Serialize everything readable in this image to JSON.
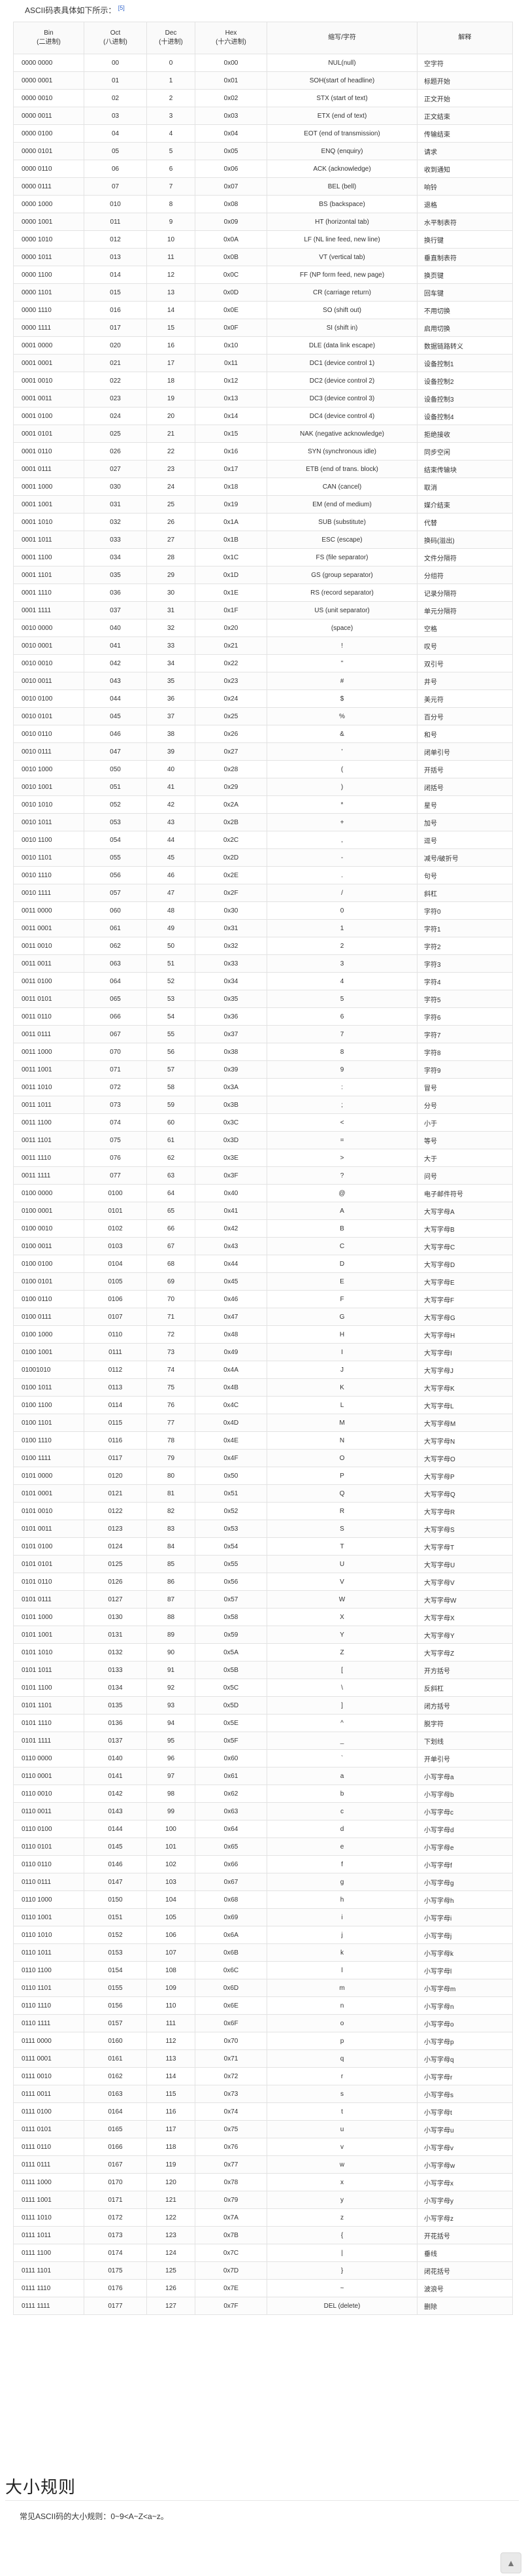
{
  "intro": {
    "text": "ASCII码表具体如下所示：",
    "ref": "[5]"
  },
  "table": {
    "headers": {
      "bin": [
        "Bin",
        "(二进制)"
      ],
      "oct": [
        "Oct",
        "(八进制)"
      ],
      "dec": [
        "Dec",
        "(十进制)"
      ],
      "hex": [
        "Hex",
        "(十六进制)"
      ],
      "abbr": [
        "缩写/字符"
      ],
      "desc": [
        "解释"
      ]
    },
    "rows": [
      [
        "0000 0000",
        "00",
        "0",
        "0x00",
        "NUL(null)",
        "空字符"
      ],
      [
        "0000 0001",
        "01",
        "1",
        "0x01",
        "SOH(start of headline)",
        "标题开始"
      ],
      [
        "0000 0010",
        "02",
        "2",
        "0x02",
        "STX (start of text)",
        "正文开始"
      ],
      [
        "0000 0011",
        "03",
        "3",
        "0x03",
        "ETX (end of text)",
        "正文结束"
      ],
      [
        "0000 0100",
        "04",
        "4",
        "0x04",
        "EOT (end of transmission)",
        "传输结束"
      ],
      [
        "0000 0101",
        "05",
        "5",
        "0x05",
        "ENQ (enquiry)",
        "请求"
      ],
      [
        "0000 0110",
        "06",
        "6",
        "0x06",
        "ACK (acknowledge)",
        "收到通知"
      ],
      [
        "0000 0111",
        "07",
        "7",
        "0x07",
        "BEL (bell)",
        "响铃"
      ],
      [
        "0000 1000",
        "010",
        "8",
        "0x08",
        "BS (backspace)",
        "退格"
      ],
      [
        "0000 1001",
        "011",
        "9",
        "0x09",
        "HT (horizontal tab)",
        "水平制表符"
      ],
      [
        "0000 1010",
        "012",
        "10",
        "0x0A",
        "LF (NL line feed, new line)",
        "换行键"
      ],
      [
        "0000 1011",
        "013",
        "11",
        "0x0B",
        "VT (vertical tab)",
        "垂直制表符"
      ],
      [
        "0000 1100",
        "014",
        "12",
        "0x0C",
        "FF (NP form feed, new page)",
        "换页键"
      ],
      [
        "0000 1101",
        "015",
        "13",
        "0x0D",
        "CR (carriage return)",
        "回车键"
      ],
      [
        "0000 1110",
        "016",
        "14",
        "0x0E",
        "SO (shift out)",
        "不用切换"
      ],
      [
        "0000 1111",
        "017",
        "15",
        "0x0F",
        "SI (shift in)",
        "启用切换"
      ],
      [
        "0001 0000",
        "020",
        "16",
        "0x10",
        "DLE (data link escape)",
        "数据链路转义"
      ],
      [
        "0001 0001",
        "021",
        "17",
        "0x11",
        "DC1 (device control 1)",
        "设备控制1"
      ],
      [
        "0001 0010",
        "022",
        "18",
        "0x12",
        "DC2 (device control 2)",
        "设备控制2"
      ],
      [
        "0001 0011",
        "023",
        "19",
        "0x13",
        "DC3 (device control 3)",
        "设备控制3"
      ],
      [
        "0001 0100",
        "024",
        "20",
        "0x14",
        "DC4 (device control 4)",
        "设备控制4"
      ],
      [
        "0001 0101",
        "025",
        "21",
        "0x15",
        "NAK (negative acknowledge)",
        "拒绝接收"
      ],
      [
        "0001 0110",
        "026",
        "22",
        "0x16",
        "SYN (synchronous idle)",
        "同步空闲"
      ],
      [
        "0001 0111",
        "027",
        "23",
        "0x17",
        "ETB (end of trans. block)",
        "结束传输块"
      ],
      [
        "0001 1000",
        "030",
        "24",
        "0x18",
        "CAN (cancel)",
        "取消"
      ],
      [
        "0001 1001",
        "031",
        "25",
        "0x19",
        "EM (end of medium)",
        "媒介结束"
      ],
      [
        "0001 1010",
        "032",
        "26",
        "0x1A",
        "SUB (substitute)",
        "代替"
      ],
      [
        "0001 1011",
        "033",
        "27",
        "0x1B",
        "ESC (escape)",
        "换码(溢出)"
      ],
      [
        "0001 1100",
        "034",
        "28",
        "0x1C",
        "FS (file separator)",
        "文件分隔符"
      ],
      [
        "0001 1101",
        "035",
        "29",
        "0x1D",
        "GS (group separator)",
        "分组符"
      ],
      [
        "0001 1110",
        "036",
        "30",
        "0x1E",
        "RS (record separator)",
        "记录分隔符"
      ],
      [
        "0001 1111",
        "037",
        "31",
        "0x1F",
        "US (unit separator)",
        "单元分隔符"
      ],
      [
        "0010 0000",
        "040",
        "32",
        "0x20",
        "(space)",
        "空格"
      ],
      [
        "0010 0001",
        "041",
        "33",
        "0x21",
        "!",
        "叹号"
      ],
      [
        "0010 0010",
        "042",
        "34",
        "0x22",
        "\"",
        "双引号"
      ],
      [
        "0010 0011",
        "043",
        "35",
        "0x23",
        "#",
        "井号"
      ],
      [
        "0010 0100",
        "044",
        "36",
        "0x24",
        "$",
        "美元符"
      ],
      [
        "0010 0101",
        "045",
        "37",
        "0x25",
        "%",
        "百分号"
      ],
      [
        "0010 0110",
        "046",
        "38",
        "0x26",
        "&",
        "和号"
      ],
      [
        "0010 0111",
        "047",
        "39",
        "0x27",
        "'",
        "闭单引号"
      ],
      [
        "0010 1000",
        "050",
        "40",
        "0x28",
        "(",
        "开括号"
      ],
      [
        "0010 1001",
        "051",
        "41",
        "0x29",
        ")",
        "闭括号"
      ],
      [
        "0010 1010",
        "052",
        "42",
        "0x2A",
        "*",
        "星号"
      ],
      [
        "0010 1011",
        "053",
        "43",
        "0x2B",
        "+",
        "加号"
      ],
      [
        "0010 1100",
        "054",
        "44",
        "0x2C",
        ",",
        "逗号"
      ],
      [
        "0010 1101",
        "055",
        "45",
        "0x2D",
        "-",
        "减号/破折号"
      ],
      [
        "0010 1110",
        "056",
        "46",
        "0x2E",
        ".",
        "句号"
      ],
      [
        "0010 1111",
        "057",
        "47",
        "0x2F",
        "/",
        "斜杠"
      ],
      [
        "0011 0000",
        "060",
        "48",
        "0x30",
        "0",
        "字符0"
      ],
      [
        "0011 0001",
        "061",
        "49",
        "0x31",
        "1",
        "字符1"
      ],
      [
        "0011 0010",
        "062",
        "50",
        "0x32",
        "2",
        "字符2"
      ],
      [
        "0011 0011",
        "063",
        "51",
        "0x33",
        "3",
        "字符3"
      ],
      [
        "0011 0100",
        "064",
        "52",
        "0x34",
        "4",
        "字符4"
      ],
      [
        "0011 0101",
        "065",
        "53",
        "0x35",
        "5",
        "字符5"
      ],
      [
        "0011 0110",
        "066",
        "54",
        "0x36",
        "6",
        "字符6"
      ],
      [
        "0011 0111",
        "067",
        "55",
        "0x37",
        "7",
        "字符7"
      ],
      [
        "0011 1000",
        "070",
        "56",
        "0x38",
        "8",
        "字符8"
      ],
      [
        "0011 1001",
        "071",
        "57",
        "0x39",
        "9",
        "字符9"
      ],
      [
        "0011 1010",
        "072",
        "58",
        "0x3A",
        ":",
        "冒号"
      ],
      [
        "0011 1011",
        "073",
        "59",
        "0x3B",
        ";",
        "分号"
      ],
      [
        "0011 1100",
        "074",
        "60",
        "0x3C",
        "<",
        "小于"
      ],
      [
        "0011 1101",
        "075",
        "61",
        "0x3D",
        "=",
        "等号"
      ],
      [
        "0011 1110",
        "076",
        "62",
        "0x3E",
        ">",
        "大于"
      ],
      [
        "0011 1111",
        "077",
        "63",
        "0x3F",
        "?",
        "问号"
      ],
      [
        "0100 0000",
        "0100",
        "64",
        "0x40",
        "@",
        "电子邮件符号"
      ],
      [
        "0100 0001",
        "0101",
        "65",
        "0x41",
        "A",
        "大写字母A"
      ],
      [
        "0100 0010",
        "0102",
        "66",
        "0x42",
        "B",
        "大写字母B"
      ],
      [
        "0100 0011",
        "0103",
        "67",
        "0x43",
        "C",
        "大写字母C"
      ],
      [
        "0100 0100",
        "0104",
        "68",
        "0x44",
        "D",
        "大写字母D"
      ],
      [
        "0100 0101",
        "0105",
        "69",
        "0x45",
        "E",
        "大写字母E"
      ],
      [
        "0100 0110",
        "0106",
        "70",
        "0x46",
        "F",
        "大写字母F"
      ],
      [
        "0100 0111",
        "0107",
        "71",
        "0x47",
        "G",
        "大写字母G"
      ],
      [
        "0100 1000",
        "0110",
        "72",
        "0x48",
        "H",
        "大写字母H"
      ],
      [
        "0100 1001",
        "0111",
        "73",
        "0x49",
        "I",
        "大写字母I"
      ],
      [
        "01001010",
        "0112",
        "74",
        "0x4A",
        "J",
        "大写字母J"
      ],
      [
        "0100 1011",
        "0113",
        "75",
        "0x4B",
        "K",
        "大写字母K"
      ],
      [
        "0100 1100",
        "0114",
        "76",
        "0x4C",
        "L",
        "大写字母L"
      ],
      [
        "0100 1101",
        "0115",
        "77",
        "0x4D",
        "M",
        "大写字母M"
      ],
      [
        "0100 1110",
        "0116",
        "78",
        "0x4E",
        "N",
        "大写字母N"
      ],
      [
        "0100 1111",
        "0117",
        "79",
        "0x4F",
        "O",
        "大写字母O"
      ],
      [
        "0101 0000",
        "0120",
        "80",
        "0x50",
        "P",
        "大写字母P"
      ],
      [
        "0101 0001",
        "0121",
        "81",
        "0x51",
        "Q",
        "大写字母Q"
      ],
      [
        "0101 0010",
        "0122",
        "82",
        "0x52",
        "R",
        "大写字母R"
      ],
      [
        "0101 0011",
        "0123",
        "83",
        "0x53",
        "S",
        "大写字母S"
      ],
      [
        "0101 0100",
        "0124",
        "84",
        "0x54",
        "T",
        "大写字母T"
      ],
      [
        "0101 0101",
        "0125",
        "85",
        "0x55",
        "U",
        "大写字母U"
      ],
      [
        "0101 0110",
        "0126",
        "86",
        "0x56",
        "V",
        "大写字母V"
      ],
      [
        "0101 0111",
        "0127",
        "87",
        "0x57",
        "W",
        "大写字母W"
      ],
      [
        "0101 1000",
        "0130",
        "88",
        "0x58",
        "X",
        "大写字母X"
      ],
      [
        "0101 1001",
        "0131",
        "89",
        "0x59",
        "Y",
        "大写字母Y"
      ],
      [
        "0101 1010",
        "0132",
        "90",
        "0x5A",
        "Z",
        "大写字母Z"
      ],
      [
        "0101 1011",
        "0133",
        "91",
        "0x5B",
        "[",
        "开方括号"
      ],
      [
        "0101 1100",
        "0134",
        "92",
        "0x5C",
        "\\",
        "反斜杠"
      ],
      [
        "0101 1101",
        "0135",
        "93",
        "0x5D",
        "]",
        "闭方括号"
      ],
      [
        "0101 1110",
        "0136",
        "94",
        "0x5E",
        "^",
        "脱字符"
      ],
      [
        "0101 1111",
        "0137",
        "95",
        "0x5F",
        "_",
        "下划线"
      ],
      [
        "0110 0000",
        "0140",
        "96",
        "0x60",
        "`",
        "开单引号"
      ],
      [
        "0110 0001",
        "0141",
        "97",
        "0x61",
        "a",
        "小写字母a"
      ],
      [
        "0110 0010",
        "0142",
        "98",
        "0x62",
        "b",
        "小写字母b"
      ],
      [
        "0110 0011",
        "0143",
        "99",
        "0x63",
        "c",
        "小写字母c"
      ],
      [
        "0110 0100",
        "0144",
        "100",
        "0x64",
        "d",
        "小写字母d"
      ],
      [
        "0110 0101",
        "0145",
        "101",
        "0x65",
        "e",
        "小写字母e"
      ],
      [
        "0110 0110",
        "0146",
        "102",
        "0x66",
        "f",
        "小写字母f"
      ],
      [
        "0110 0111",
        "0147",
        "103",
        "0x67",
        "g",
        "小写字母g"
      ],
      [
        "0110 1000",
        "0150",
        "104",
        "0x68",
        "h",
        "小写字母h"
      ],
      [
        "0110 1001",
        "0151",
        "105",
        "0x69",
        "i",
        "小写字母i"
      ],
      [
        "0110 1010",
        "0152",
        "106",
        "0x6A",
        "j",
        "小写字母j"
      ],
      [
        "0110 1011",
        "0153",
        "107",
        "0x6B",
        "k",
        "小写字母k"
      ],
      [
        "0110 1100",
        "0154",
        "108",
        "0x6C",
        "l",
        "小写字母l"
      ],
      [
        "0110 1101",
        "0155",
        "109",
        "0x6D",
        "m",
        "小写字母m"
      ],
      [
        "0110 1110",
        "0156",
        "110",
        "0x6E",
        "n",
        "小写字母n"
      ],
      [
        "0110 1111",
        "0157",
        "111",
        "0x6F",
        "o",
        "小写字母o"
      ],
      [
        "0111 0000",
        "0160",
        "112",
        "0x70",
        "p",
        "小写字母p"
      ],
      [
        "0111 0001",
        "0161",
        "113",
        "0x71",
        "q",
        "小写字母q"
      ],
      [
        "0111 0010",
        "0162",
        "114",
        "0x72",
        "r",
        "小写字母r"
      ],
      [
        "0111 0011",
        "0163",
        "115",
        "0x73",
        "s",
        "小写字母s"
      ],
      [
        "0111 0100",
        "0164",
        "116",
        "0x74",
        "t",
        "小写字母t"
      ],
      [
        "0111 0101",
        "0165",
        "117",
        "0x75",
        "u",
        "小写字母u"
      ],
      [
        "0111 0110",
        "0166",
        "118",
        "0x76",
        "v",
        "小写字母v"
      ],
      [
        "0111 0111",
        "0167",
        "119",
        "0x77",
        "w",
        "小写字母w"
      ],
      [
        "0111 1000",
        "0170",
        "120",
        "0x78",
        "x",
        "小写字母x"
      ],
      [
        "0111 1001",
        "0171",
        "121",
        "0x79",
        "y",
        "小写字母y"
      ],
      [
        "0111 1010",
        "0172",
        "122",
        "0x7A",
        "z",
        "小写字母z"
      ],
      [
        "0111 1011",
        "0173",
        "123",
        "0x7B",
        "{",
        "开花括号"
      ],
      [
        "0111 1100",
        "0174",
        "124",
        "0x7C",
        "|",
        "垂线"
      ],
      [
        "0111 1101",
        "0175",
        "125",
        "0x7D",
        "}",
        "闭花括号"
      ],
      [
        "0111 1110",
        "0176",
        "126",
        "0x7E",
        "~",
        "波浪号"
      ],
      [
        "0111 1111",
        "0177",
        "127",
        "0x7F",
        "DEL (delete)",
        "删除"
      ]
    ]
  },
  "section": {
    "title": "大小规则",
    "rule": "常见ASCII码的大小规则：0~9<A~Z<a~z。"
  },
  "icons": {
    "scroll_top": "arrow-up-icon"
  }
}
